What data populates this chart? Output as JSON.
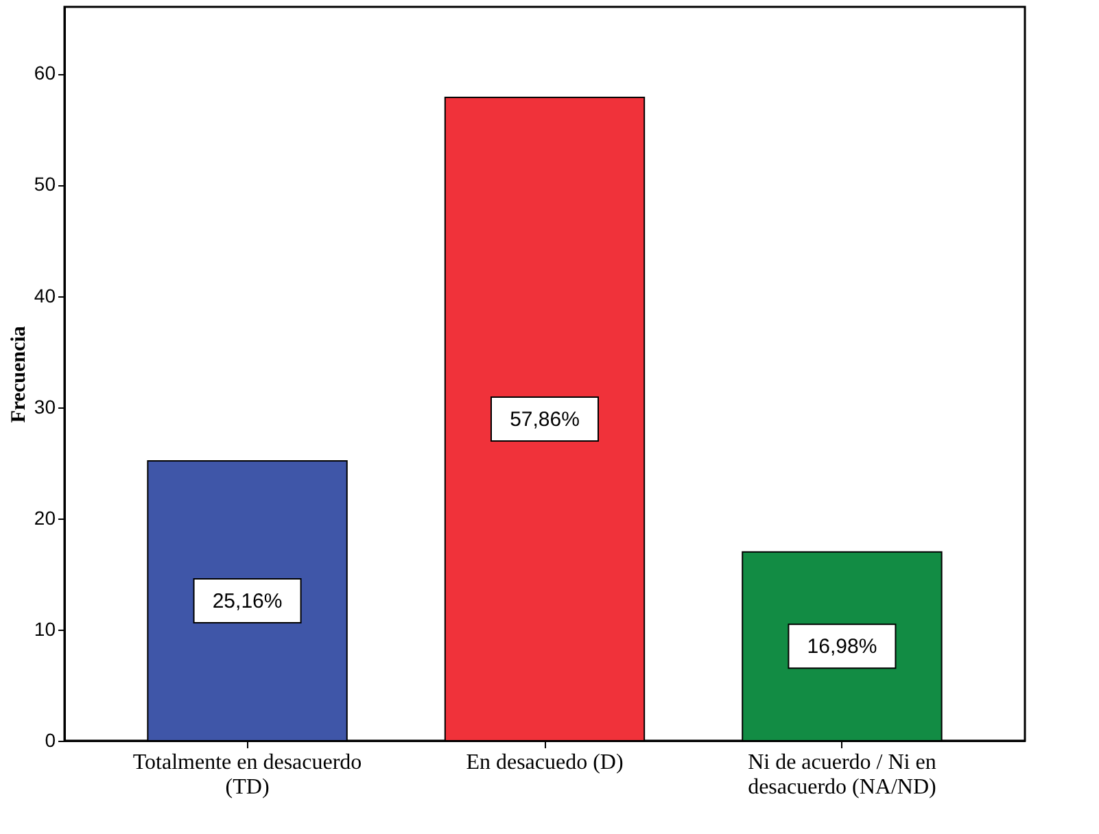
{
  "chart_data": {
    "type": "bar",
    "categories": [
      "Totalmente en desacuerdo\n(TD)",
      "En desacuedo (D)",
      "Ni de acuerdo / Ni en\ndesacuerdo (NA/ND)"
    ],
    "values": [
      25.16,
      57.86,
      16.98
    ],
    "colors": [
      "#3f56a8",
      "#f0323a",
      "#128c44"
    ],
    "value_labels": [
      "25,16%",
      "57,86%",
      "16,98%"
    ],
    "ylabel": "Frecuencia",
    "ylim": [
      0,
      66
    ],
    "yticks": [
      0,
      10,
      20,
      30,
      40,
      50,
      60
    ],
    "grid": false
  }
}
